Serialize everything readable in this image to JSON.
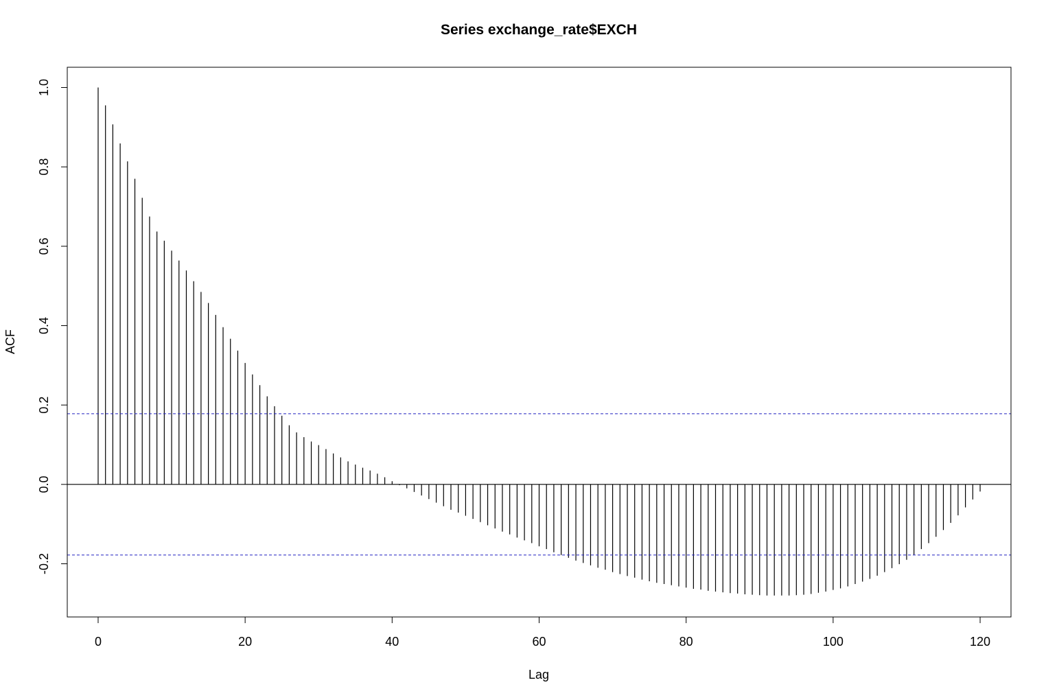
{
  "chart_data": {
    "type": "bar",
    "title": "Series  exchange_rate$EXCH",
    "xlabel": "Lag",
    "ylabel": "ACF",
    "xlim": [
      -4.2,
      124.2
    ],
    "ylim": [
      -0.334,
      1.051
    ],
    "x_ticks": [
      0,
      20,
      40,
      60,
      80,
      100,
      120
    ],
    "x_tick_labels": [
      "0",
      "20",
      "40",
      "60",
      "80",
      "100",
      "120"
    ],
    "y_ticks": [
      -0.2,
      0.0,
      0.2,
      0.4,
      0.6,
      0.8,
      1.0
    ],
    "y_tick_labels": [
      "-0.2",
      "0.0",
      "0.2",
      "0.4",
      "0.6",
      "0.8",
      "1.0"
    ],
    "grid": false,
    "legend": "none",
    "confidence_band": [
      -0.178,
      0.178
    ],
    "colors": {
      "bars": "#000000",
      "confidence": "#2020c0",
      "zero_line": "#000000",
      "frame": "#000000"
    },
    "series": [
      {
        "lags": [
          0,
          1,
          2,
          3,
          4,
          5,
          6,
          7,
          8,
          9,
          10,
          11,
          12,
          13,
          14,
          15,
          16,
          17,
          18,
          19,
          20,
          21,
          22,
          23,
          24,
          25,
          26,
          27,
          28,
          29,
          30,
          31,
          32,
          33,
          34,
          35,
          36,
          37,
          38,
          39,
          40,
          41,
          42,
          43,
          44,
          45,
          46,
          47,
          48,
          49,
          50,
          51,
          52,
          53,
          54,
          55,
          56,
          57,
          58,
          59,
          60,
          61,
          62,
          63,
          64,
          65,
          66,
          67,
          68,
          69,
          70,
          71,
          72,
          73,
          74,
          75,
          76,
          77,
          78,
          79,
          80,
          81,
          82,
          83,
          84,
          85,
          86,
          87,
          88,
          89,
          90,
          91,
          92,
          93,
          94,
          95,
          96,
          97,
          98,
          99,
          100,
          101,
          102,
          103,
          104,
          105,
          106,
          107,
          108,
          109,
          110,
          111,
          112,
          113,
          114,
          115,
          116,
          117,
          118,
          119,
          120
        ],
        "values": [
          1.0,
          0.955,
          0.907,
          0.859,
          0.814,
          0.77,
          0.722,
          0.675,
          0.637,
          0.614,
          0.589,
          0.564,
          0.539,
          0.512,
          0.485,
          0.457,
          0.427,
          0.396,
          0.367,
          0.337,
          0.306,
          0.277,
          0.25,
          0.222,
          0.197,
          0.173,
          0.149,
          0.131,
          0.119,
          0.108,
          0.099,
          0.089,
          0.078,
          0.068,
          0.058,
          0.05,
          0.042,
          0.035,
          0.027,
          0.018,
          0.008,
          -0.002,
          -0.01,
          -0.019,
          -0.028,
          -0.037,
          -0.046,
          -0.055,
          -0.064,
          -0.071,
          -0.079,
          -0.087,
          -0.095,
          -0.103,
          -0.111,
          -0.119,
          -0.126,
          -0.134,
          -0.141,
          -0.148,
          -0.156,
          -0.163,
          -0.171,
          -0.178,
          -0.185,
          -0.192,
          -0.198,
          -0.204,
          -0.21,
          -0.215,
          -0.221,
          -0.226,
          -0.231,
          -0.235,
          -0.24,
          -0.244,
          -0.248,
          -0.251,
          -0.254,
          -0.257,
          -0.26,
          -0.263,
          -0.265,
          -0.268,
          -0.27,
          -0.272,
          -0.274,
          -0.275,
          -0.277,
          -0.278,
          -0.279,
          -0.28,
          -0.28,
          -0.28,
          -0.28,
          -0.279,
          -0.278,
          -0.276,
          -0.273,
          -0.27,
          -0.266,
          -0.262,
          -0.257,
          -0.251,
          -0.245,
          -0.238,
          -0.23,
          -0.221,
          -0.211,
          -0.201,
          -0.19,
          -0.177,
          -0.163,
          -0.148,
          -0.132,
          -0.115,
          -0.097,
          -0.078,
          -0.058,
          -0.038,
          -0.018
        ]
      }
    ]
  }
}
